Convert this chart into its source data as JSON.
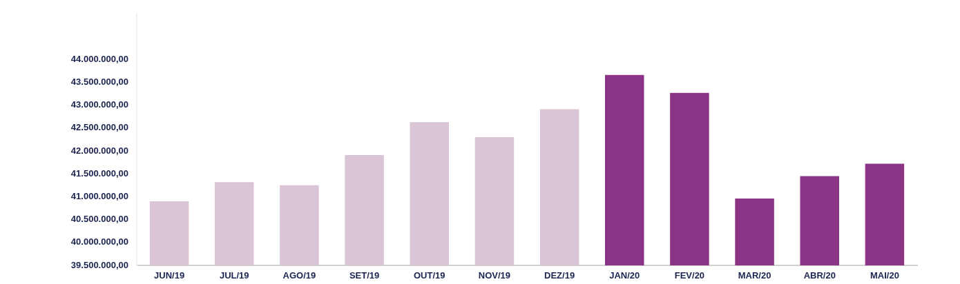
{
  "chart_data": {
    "type": "bar",
    "categories": [
      "JUN/19",
      "JUL/19",
      "AGO/19",
      "SET/19",
      "OUT/19",
      "NOV/19",
      "DEZ/19",
      "JAN/20",
      "FEV/20",
      "MAR/20",
      "ABR/20",
      "MAI/20"
    ],
    "values": [
      40900000,
      41320000,
      41250000,
      41910000,
      42630000,
      42300000,
      42910000,
      43660000,
      43270000,
      40960000,
      41450000,
      41720000
    ],
    "colors": [
      "#d9c5d5",
      "#d9c5d5",
      "#d9c5d5",
      "#d9c5d5",
      "#d9c5d5",
      "#d9c5d5",
      "#d9c5d5",
      "#8b3485",
      "#8b3485",
      "#8b3485",
      "#8b3485",
      "#8b3485"
    ],
    "ylim": [
      39500000,
      45000000
    ],
    "yticks": [
      {
        "value": 39500000,
        "label": "39.500.000,00"
      },
      {
        "value": 40000000,
        "label": "40.000.000,00"
      },
      {
        "value": 40500000,
        "label": "40.500.000,00"
      },
      {
        "value": 41000000,
        "label": "41.000.000,00"
      },
      {
        "value": 41500000,
        "label": "41.500.000,00"
      },
      {
        "value": 42000000,
        "label": "42.000.000,00"
      },
      {
        "value": 42500000,
        "label": "42.500.000,00"
      },
      {
        "value": 43000000,
        "label": "43.000.000,00"
      },
      {
        "value": 43500000,
        "label": "43.500.000,00"
      },
      {
        "value": 44000000,
        "label": "44.000.000,00"
      }
    ],
    "grid": false,
    "legend": false
  }
}
